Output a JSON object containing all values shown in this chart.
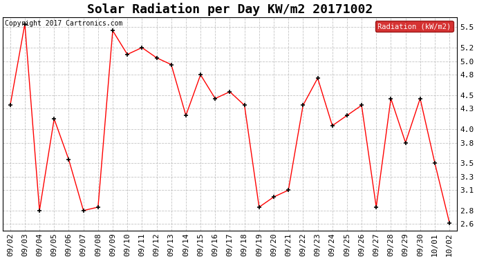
{
  "title": "Solar Radiation per Day KW/m2 20171002",
  "copyright_text": "Copyright 2017 Cartronics.com",
  "legend_label": "Radiation (kW/m2)",
  "dates": [
    "09/02",
    "09/03",
    "09/04",
    "09/05",
    "09/06",
    "09/07",
    "09/08",
    "09/09",
    "09/10",
    "09/11",
    "09/12",
    "09/13",
    "09/14",
    "09/15",
    "09/16",
    "09/17",
    "09/18",
    "09/19",
    "09/20",
    "09/21",
    "09/22",
    "09/23",
    "09/24",
    "09/25",
    "09/26",
    "09/27",
    "09/28",
    "09/29",
    "09/30",
    "10/01",
    "10/02"
  ],
  "values": [
    4.35,
    5.55,
    2.8,
    4.15,
    3.55,
    2.8,
    2.85,
    5.45,
    5.1,
    5.2,
    5.05,
    4.95,
    4.2,
    4.8,
    4.45,
    4.55,
    4.35,
    2.85,
    3.0,
    3.1,
    4.35,
    4.75,
    4.05,
    4.2,
    4.35,
    2.85,
    4.45,
    3.8,
    4.45,
    3.5,
    2.62
  ],
  "line_color": "red",
  "marker_color": "black",
  "marker": "+",
  "background_color": "#ffffff",
  "grid_color": "#aaaaaa",
  "ylim": [
    2.5,
    5.65
  ],
  "yticks": [
    2.6,
    2.8,
    3.1,
    3.3,
    3.5,
    3.8,
    4.0,
    4.3,
    4.5,
    4.8,
    5.0,
    5.2,
    5.5
  ],
  "title_fontsize": 13,
  "copyright_fontsize": 7,
  "tick_fontsize": 8,
  "legend_bg": "#cc0000",
  "legend_text_color": "#ffffff"
}
